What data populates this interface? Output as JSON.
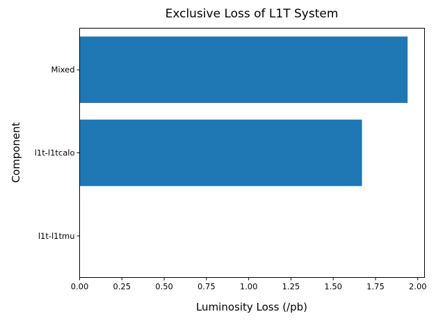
{
  "chart_data": {
    "type": "bar",
    "orientation": "horizontal",
    "title": "Exclusive Loss of L1T System",
    "xlabel": "Luminosity Loss (/pb)",
    "ylabel": "Component",
    "categories": [
      "l1t-l1tmu",
      "l1t-l1tcalo",
      "Mixed"
    ],
    "values": [
      0,
      1.67,
      1.94
    ],
    "xlim": [
      0,
      2.04
    ],
    "xticks": [
      "0.00",
      "0.25",
      "0.50",
      "0.75",
      "1.00",
      "1.25",
      "1.50",
      "1.75",
      "2.00"
    ],
    "bar_color": "#1f77b4",
    "grid": false,
    "legend": "none"
  }
}
